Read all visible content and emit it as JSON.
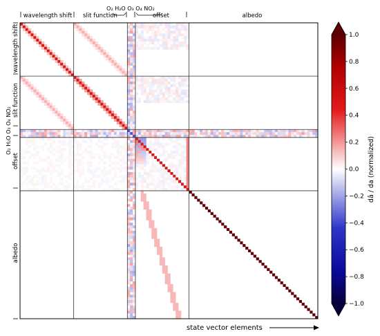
{
  "chart_data": {
    "type": "heatmap",
    "title": "",
    "xlabel": "state vector elements",
    "ylabel": "",
    "blocks": [
      {
        "name": "wavelength shift",
        "size": 20
      },
      {
        "name": "slit function",
        "size": 20
      },
      {
        "name": "O₂ H₂O O₃ O₄ NO₂",
        "size": 3
      },
      {
        "name": "offset",
        "size": 20
      },
      {
        "name": "albedo",
        "size": 48
      }
    ],
    "colorbar": {
      "label": "dâ / da (normalized)",
      "min": -1.0,
      "max": 1.0,
      "ticks": [
        "−1.0",
        "−0.8",
        "−0.6",
        "−0.4",
        "−0.2",
        "0.0",
        "0.2",
        "0.4",
        "0.6",
        "0.8",
        "1.0"
      ],
      "colors": [
        "#08003a",
        "#2d35c9",
        "#ffffff",
        "#e41a1a",
        "#5a0000"
      ]
    }
  }
}
